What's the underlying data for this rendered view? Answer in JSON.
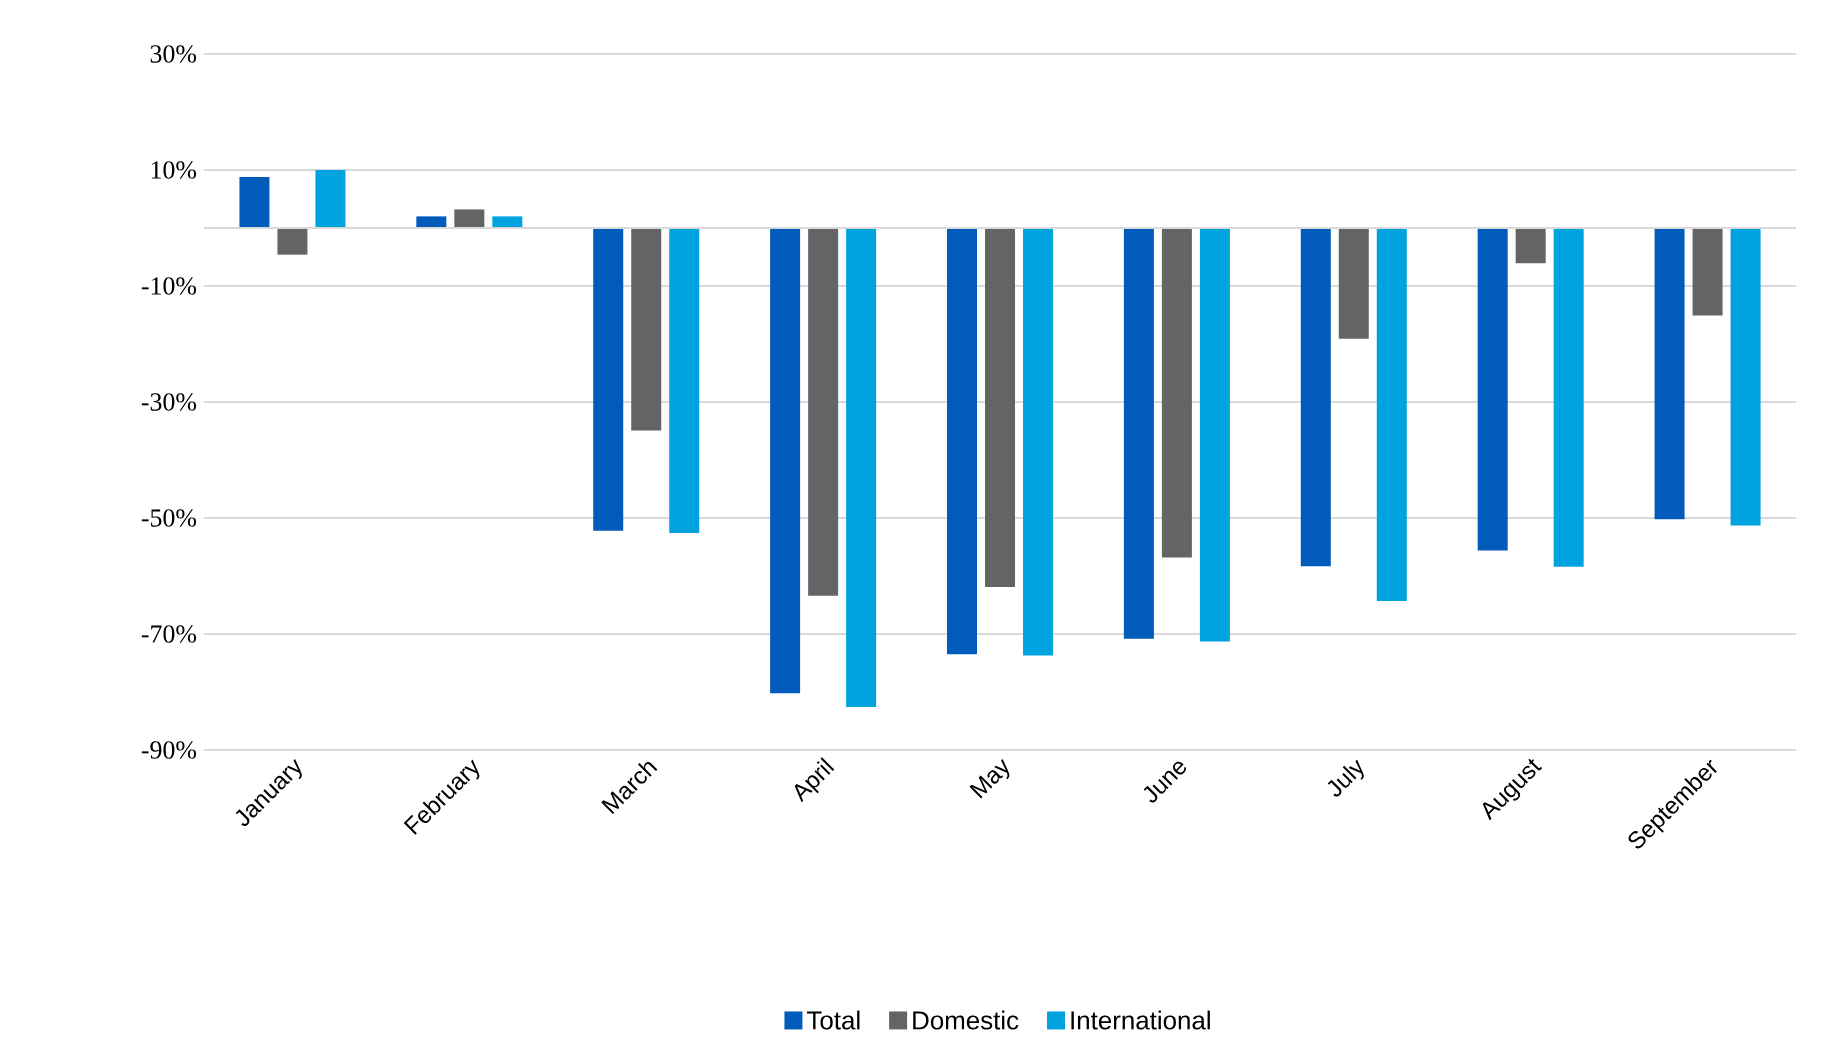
{
  "chart_data": {
    "type": "bar",
    "categories": [
      "January",
      "February",
      "March",
      "April",
      "May",
      "June",
      "July",
      "August",
      "September"
    ],
    "series": [
      {
        "name": "Total",
        "color": "#005bbb",
        "values": [
          8.8,
          2.0,
          -52.2,
          -80.2,
          -73.5,
          -70.8,
          -58.3,
          -55.6,
          -50.2
        ]
      },
      {
        "name": "Domestic",
        "color": "#636466",
        "values": [
          -4.6,
          3.2,
          -34.9,
          -63.4,
          -61.9,
          -56.8,
          -19.1,
          -6.1,
          -15.1
        ]
      },
      {
        "name": "International",
        "color": "#00a2df",
        "values": [
          10.0,
          2.0,
          -52.6,
          -82.6,
          -73.7,
          -71.3,
          -64.3,
          -58.4,
          -51.3
        ]
      }
    ],
    "ylim": [
      -90,
      30
    ],
    "yticks": [
      {
        "value": 30,
        "label": "30%"
      },
      {
        "value": 10,
        "label": "10%"
      },
      {
        "value": -10,
        "label": "-10%"
      },
      {
        "value": -30,
        "label": "-30%"
      },
      {
        "value": -50,
        "label": "-50%"
      },
      {
        "value": -70,
        "label": "-70%"
      },
      {
        "value": -90,
        "label": "-90%"
      }
    ],
    "grid": "y",
    "legend": "bottom"
  }
}
